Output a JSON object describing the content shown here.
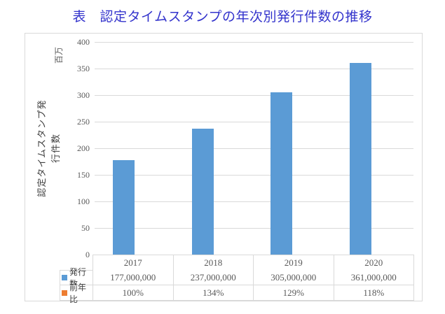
{
  "chart_data": {
    "type": "bar",
    "title": "表　認定タイムスタンプの年次別発行件数の推移",
    "title_color": "#3333cc",
    "categories": [
      "2017",
      "2018",
      "2019",
      "2020"
    ],
    "series": [
      {
        "name": "発行数",
        "values": [
          177000000,
          237000000,
          305000000,
          361000000
        ],
        "labels": [
          "177,000,000",
          "237,000,000",
          "305,000,000",
          "361,000,000"
        ],
        "marker_color": "#5b9bd5"
      },
      {
        "name": "前年比",
        "labels": [
          "100%",
          "134%",
          "129%",
          "118%"
        ],
        "marker_color": "#ed7d31"
      }
    ],
    "bar_values_millions": [
      177,
      237,
      305,
      361
    ],
    "bar_color": "#5b9bd5",
    "ylabel": "認定タイムスタンプ発行件数",
    "y_unit": "百万",
    "y_ticks": [
      0,
      50,
      100,
      150,
      200,
      250,
      300,
      350,
      400
    ],
    "ylim": [
      0,
      400
    ],
    "grid": true,
    "gridline_color": "#d9d9d9",
    "legend_position": "data-table",
    "has_data_table": true
  }
}
